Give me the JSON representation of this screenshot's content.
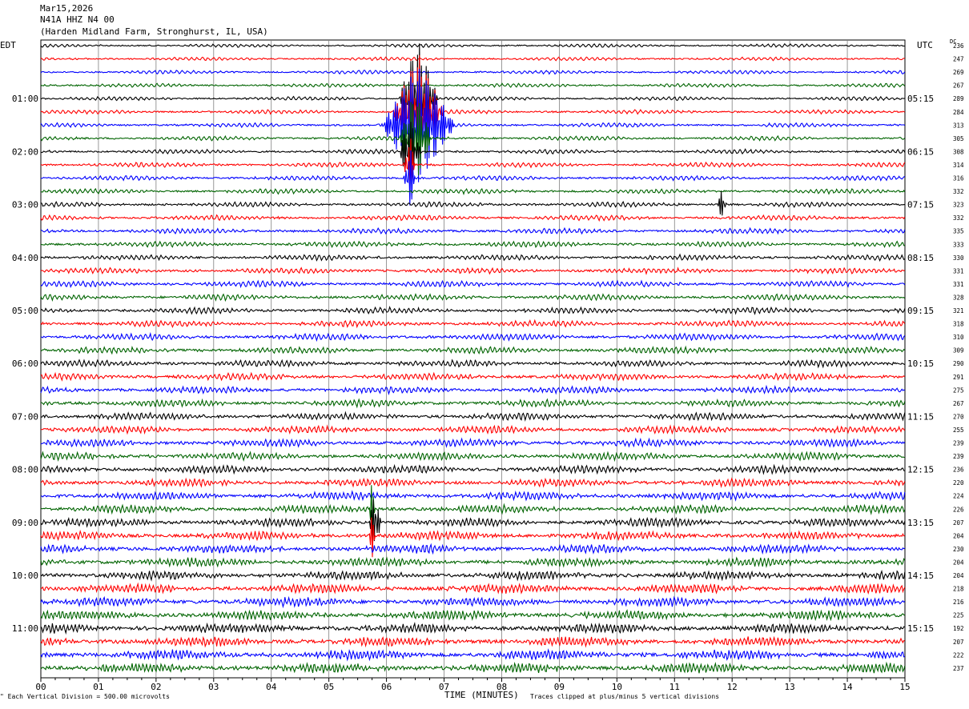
{
  "header": {
    "date": "Mar15,2026",
    "station": "N41A HHZ N4 00",
    "location": "(Harden Midland Farm, Stronghurst, IL, USA)"
  },
  "left_timezone": "EDT",
  "right_timezone": "UTC",
  "dc_label": "DC",
  "footer": {
    "scale_note": "Each Vertical Division = 500.00 microvolts",
    "clip_note": "Traces clipped at plus/minus 5 vertical divisions",
    "xlabel": "TIME (MINUTES)"
  },
  "colors": {
    "cycle": [
      "#000000",
      "#ff0000",
      "#0000ff",
      "#006400"
    ],
    "grid": "#808080"
  },
  "chart_data": {
    "type": "line",
    "xlabel": "TIME (MINUTES)",
    "xlim": [
      0,
      15
    ],
    "x_ticks": [
      "00",
      "01",
      "02",
      "03",
      "04",
      "05",
      "06",
      "07",
      "08",
      "09",
      "10",
      "11",
      "12",
      "13",
      "14",
      "15"
    ],
    "left_hour_labels": [
      "01:00",
      "02:00",
      "03:00",
      "04:00",
      "05:00",
      "06:00",
      "07:00",
      "08:00",
      "09:00",
      "10:00",
      "11:00"
    ],
    "right_hour_labels": [
      "05:15",
      "06:15",
      "07:15",
      "08:15",
      "09:15",
      "10:15",
      "11:15",
      "12:15",
      "13:15",
      "14:15",
      "15:15"
    ],
    "dc_offsets": [
      236,
      247,
      269,
      267,
      289,
      284,
      313,
      305,
      308,
      314,
      316,
      332,
      323,
      332,
      335,
      333,
      330,
      331,
      331,
      328,
      321,
      318,
      310,
      309,
      290,
      291,
      275,
      267,
      270,
      255,
      239,
      239,
      236,
      220,
      224,
      226,
      207,
      204,
      230,
      204,
      204,
      218,
      216,
      225,
      192,
      207,
      222,
      237
    ],
    "events": [
      {
        "row": 4,
        "start_min": 6.2,
        "end_min": 6.9,
        "amp": 5
      },
      {
        "row": 5,
        "start_min": 6.1,
        "end_min": 7.0,
        "amp": 5
      },
      {
        "row": 6,
        "start_min": 5.9,
        "end_min": 7.2,
        "amp": 5
      },
      {
        "row": 7,
        "start_min": 6.2,
        "end_min": 6.8,
        "amp": 4
      },
      {
        "row": 8,
        "start_min": 6.2,
        "end_min": 6.6,
        "amp": 3
      },
      {
        "row": 9,
        "start_min": 6.3,
        "end_min": 6.5,
        "amp": 3
      },
      {
        "row": 10,
        "start_min": 6.3,
        "end_min": 6.5,
        "amp": 3
      },
      {
        "row": 12,
        "start_min": 11.75,
        "end_min": 11.9,
        "amp": 1.5
      },
      {
        "row": 35,
        "start_min": 5.7,
        "end_min": 5.8,
        "amp": 2.5
      },
      {
        "row": 36,
        "start_min": 5.7,
        "end_min": 5.9,
        "amp": 3
      },
      {
        "row": 37,
        "start_min": 5.7,
        "end_min": 5.8,
        "amp": 2
      }
    ]
  }
}
